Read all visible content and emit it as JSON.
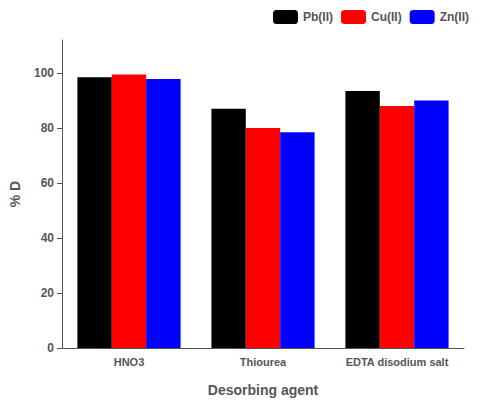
{
  "chart_data": {
    "type": "bar",
    "categories": [
      "HNO3",
      "Thiourea",
      "EDTA disodium salt"
    ],
    "series": [
      {
        "name": "Pb(II)",
        "color": "#000000",
        "values": [
          98.5,
          87.0,
          93.5
        ]
      },
      {
        "name": "Cu(II)",
        "color": "#ff0000",
        "values": [
          99.5,
          80.0,
          88.0
        ]
      },
      {
        "name": "Zn(II)",
        "color": "#0000ff",
        "values": [
          97.8,
          78.5,
          90.0
        ]
      }
    ],
    "xlabel": "Desorbing agent",
    "ylabel": "% D",
    "ylim": [
      0,
      112
    ],
    "yticks": [
      0,
      20,
      40,
      60,
      80,
      100
    ],
    "grid": false,
    "legend": "upper right"
  }
}
